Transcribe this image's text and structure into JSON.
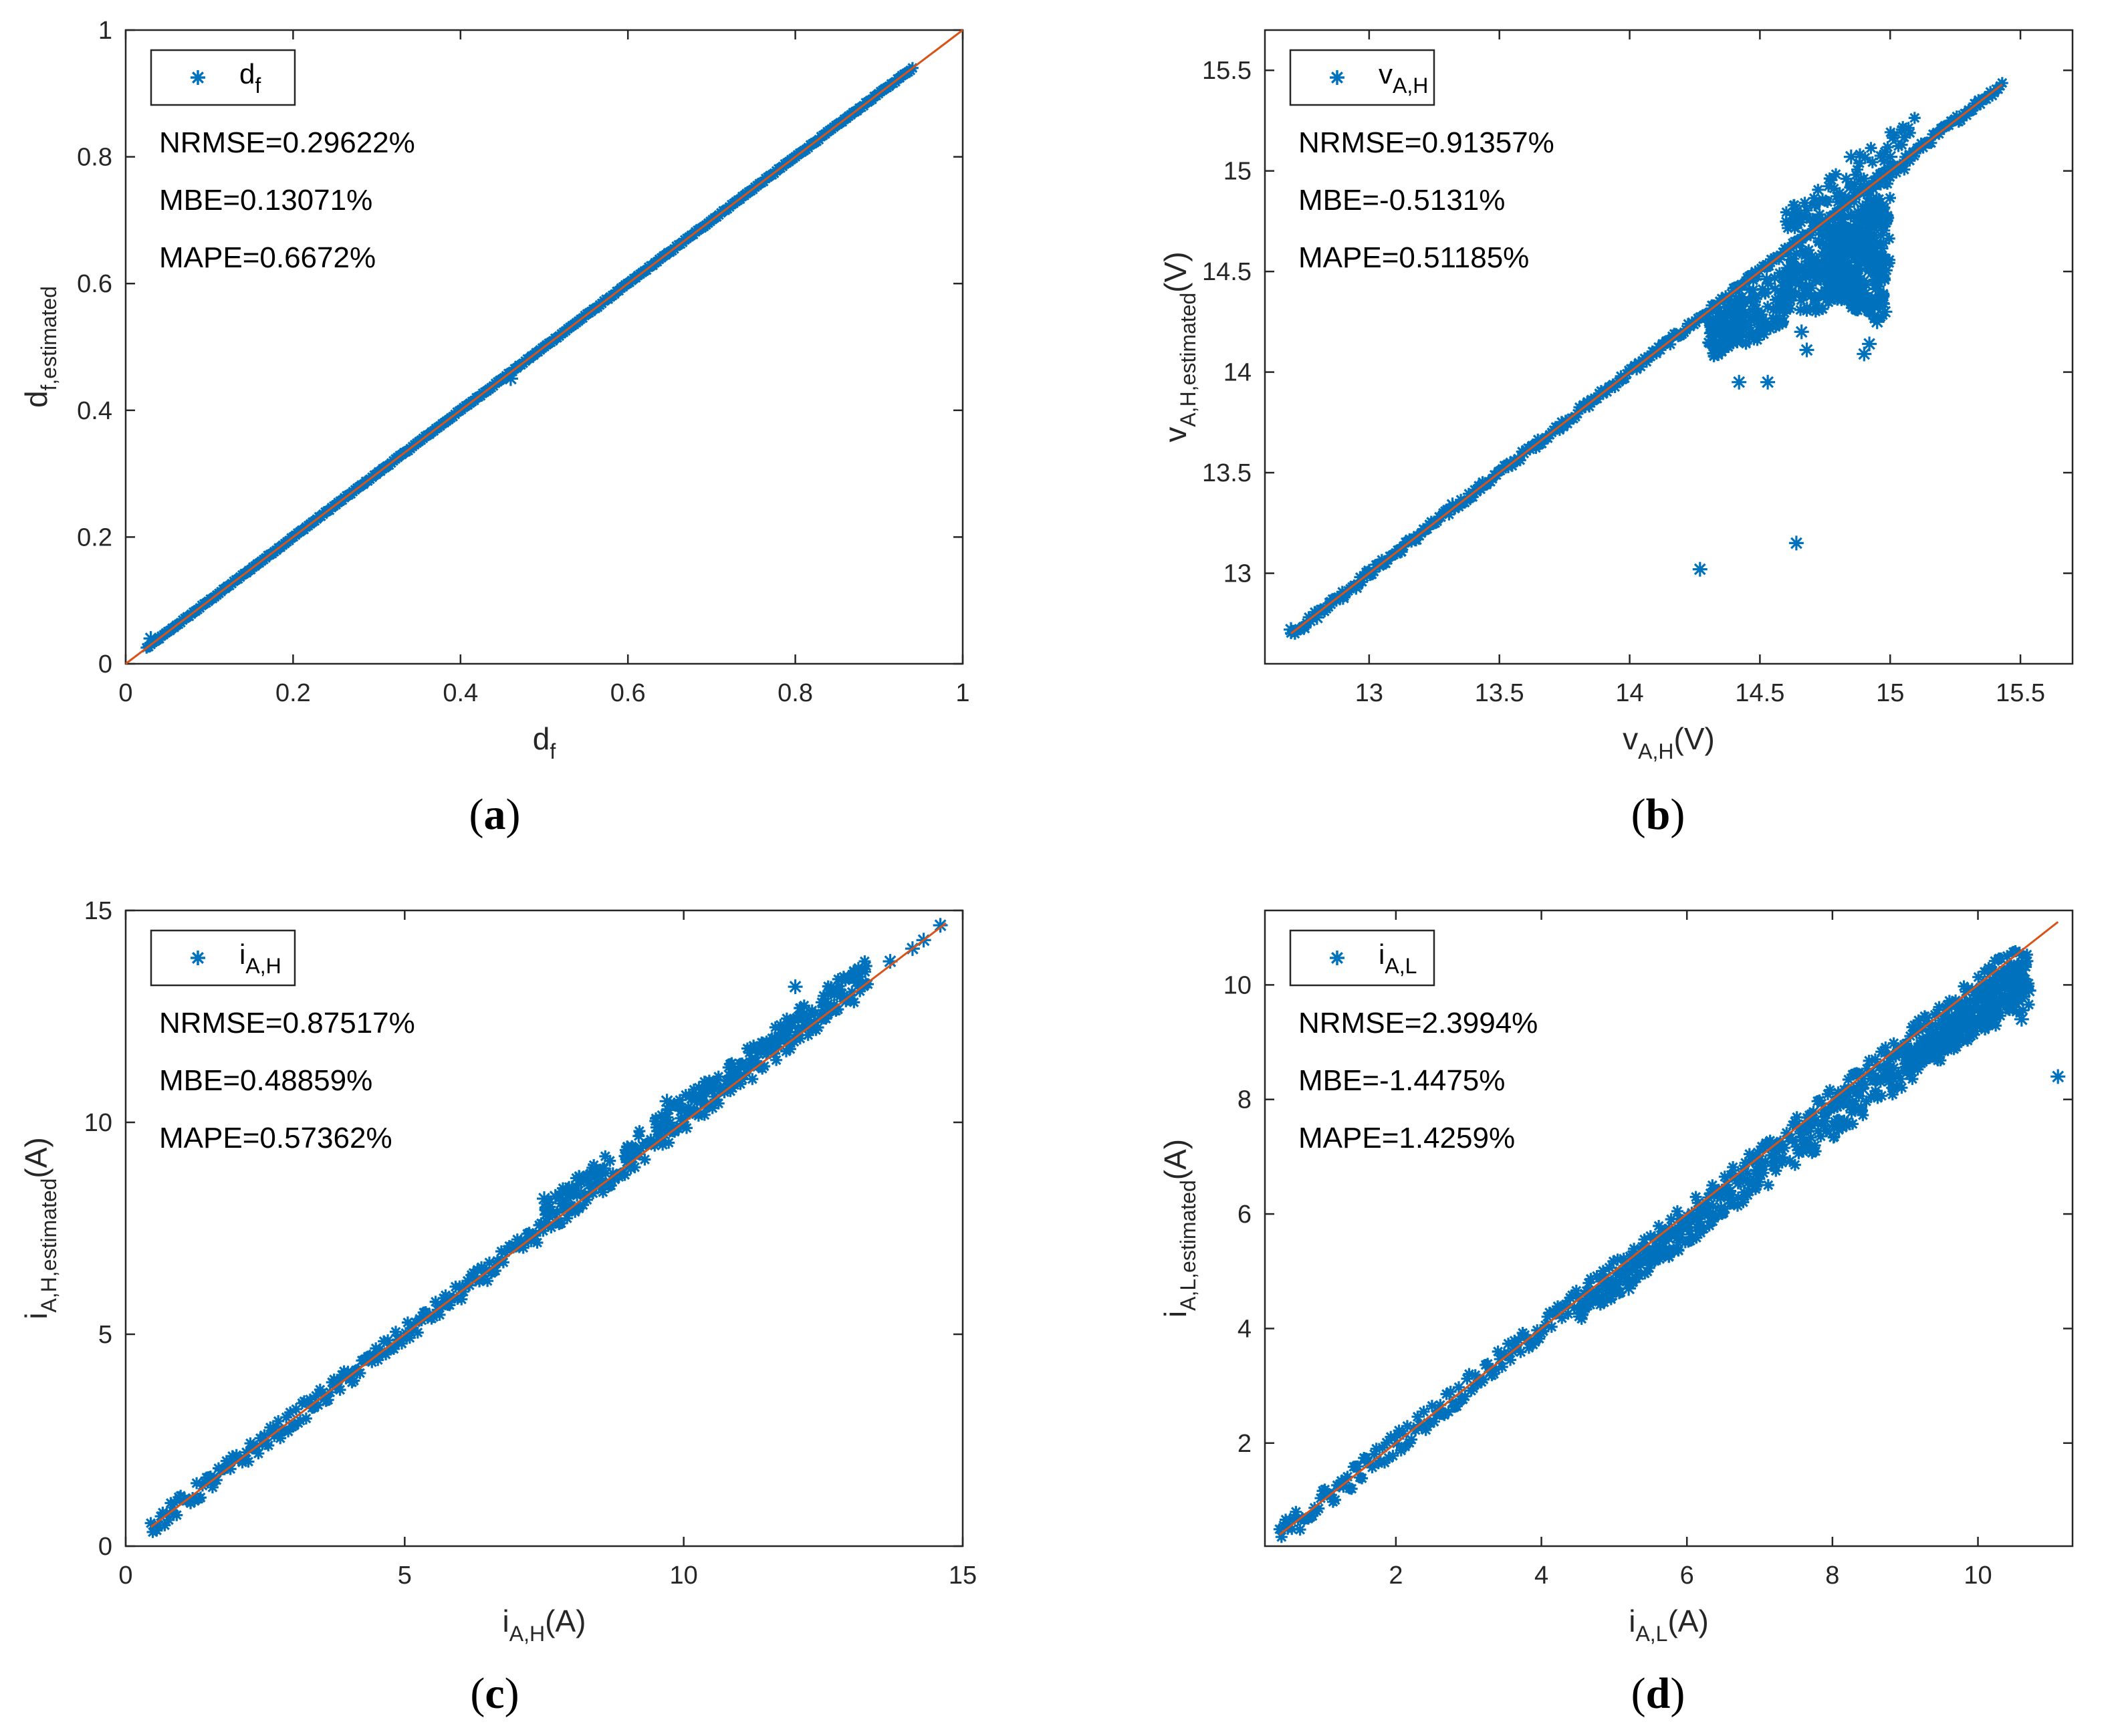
{
  "colors": {
    "marker": "#0072BD",
    "fit_line": "#D95319",
    "axes": "#262626"
  },
  "chart_data": [
    {
      "type": "scatter",
      "panel": "a",
      "caption": "a",
      "xlabel": {
        "main": "d",
        "sub": "f",
        "unit": ""
      },
      "ylabel": {
        "main": "d",
        "sub": "f,estimated",
        "unit": ""
      },
      "xlim": [
        0,
        1
      ],
      "ylim": [
        0,
        1
      ],
      "xticks": [
        0,
        0.2,
        0.4,
        0.6,
        0.8,
        1
      ],
      "yticks": [
        0,
        0.2,
        0.4,
        0.6,
        0.8,
        1
      ],
      "tick_labels_x": [
        "0",
        "0.2",
        "0.4",
        "0.6",
        "0.8",
        "1"
      ],
      "tick_labels_y": [
        "0",
        "0.2",
        "0.4",
        "0.6",
        "0.8",
        "1"
      ],
      "legend": {
        "main": "d",
        "sub": "f",
        "position": "top-left"
      },
      "stats": [
        "NRMSE=0.29622%",
        "MBE=0.13071%",
        "MAPE=0.6672%"
      ],
      "reference_line": {
        "from": [
          0,
          0
        ],
        "to": [
          1,
          1
        ]
      },
      "series_range": [
        0.025,
        0.94
      ],
      "spread": 0.004,
      "outliers": [
        [
          0.03,
          0.04
        ],
        [
          0.46,
          0.45
        ]
      ],
      "clusters": []
    },
    {
      "type": "scatter",
      "panel": "b",
      "caption": "b",
      "xlabel": {
        "main": "v",
        "sub": "A,H",
        "unit": "(V)"
      },
      "ylabel": {
        "main": "v",
        "sub": "A,H,estimated",
        "unit": "(V)"
      },
      "xlim": [
        12.6,
        15.7
      ],
      "ylim": [
        12.55,
        15.7
      ],
      "xticks": [
        13,
        13.5,
        14,
        14.5,
        15,
        15.5
      ],
      "yticks": [
        13,
        13.5,
        14,
        14.5,
        15,
        15.5
      ],
      "tick_labels_x": [
        "13",
        "13.5",
        "14",
        "14.5",
        "15",
        "15.5"
      ],
      "tick_labels_y": [
        "13",
        "13.5",
        "14",
        "14.5",
        "15",
        "15.5"
      ],
      "legend": {
        "main": "v",
        "sub": "A,H",
        "position": "top-left"
      },
      "stats": [
        "NRMSE=0.91357%",
        "MBE=-0.5131%",
        "MAPE=0.51185%"
      ],
      "reference_line": {
        "from": [
          12.7,
          12.7
        ],
        "to": [
          15.43,
          15.43
        ]
      },
      "series_range": [
        12.7,
        15.43
      ],
      "spread": 0.02,
      "outliers": [
        [
          12.7,
          12.72
        ],
        [
          12.75,
          12.73
        ],
        [
          12.8,
          12.78
        ],
        [
          12.85,
          12.85
        ],
        [
          12.9,
          12.88
        ],
        [
          12.95,
          12.93
        ],
        [
          13.0,
          13.01
        ],
        [
          13.12,
          13.11
        ],
        [
          13.18,
          13.17
        ],
        [
          13.32,
          13.34
        ],
        [
          14.27,
          13.02
        ],
        [
          14.42,
          13.95
        ],
        [
          14.53,
          13.95
        ],
        [
          14.64,
          13.15
        ],
        [
          14.66,
          14.2
        ],
        [
          14.68,
          14.11
        ],
        [
          14.9,
          14.09
        ],
        [
          14.92,
          14.14
        ],
        [
          14.95,
          14.25
        ],
        [
          14.98,
          14.3
        ],
        [
          15.0,
          15.07
        ],
        [
          14.85,
          15.07
        ]
      ],
      "clusters": [
        {
          "x": [
            14.3,
            15.0
          ],
          "below": [
            0.05,
            0.55
          ],
          "count": 420
        },
        {
          "x": [
            14.75,
            14.98
          ],
          "below": [
            0.1,
            0.75
          ],
          "count": 260
        },
        {
          "x": [
            14.6,
            15.1
          ],
          "below": [
            -0.2,
            0.08
          ],
          "count": 90
        }
      ]
    },
    {
      "type": "scatter",
      "panel": "c",
      "caption": "c",
      "xlabel": {
        "main": "i",
        "sub": "A,H",
        "unit": "(A)"
      },
      "ylabel": {
        "main": "i",
        "sub": "A,H,estimated",
        "unit": "(A)"
      },
      "xlim": [
        0,
        15
      ],
      "ylim": [
        0,
        15
      ],
      "xticks": [
        0,
        5,
        10,
        15
      ],
      "yticks": [
        0,
        5,
        10,
        15
      ],
      "tick_labels_x": [
        "0",
        "5",
        "10",
        "15"
      ],
      "tick_labels_y": [
        "0",
        "5",
        "10",
        "15"
      ],
      "legend": {
        "main": "i",
        "sub": "A,H",
        "position": "top-left"
      },
      "stats": [
        "NRMSE=0.87517%",
        "MBE=0.48859%",
        "MAPE=0.57362%"
      ],
      "reference_line": {
        "from": [
          0.45,
          0.45
        ],
        "to": [
          14.7,
          14.7
        ]
      },
      "series_range": [
        0.45,
        13.3
      ],
      "spread": 0.05,
      "outliers": [
        [
          7.5,
          8.2
        ],
        [
          7.7,
          8.25
        ],
        [
          8.0,
          8.45
        ],
        [
          8.3,
          8.6
        ],
        [
          8.6,
          8.8
        ],
        [
          9.0,
          9.3
        ],
        [
          9.7,
          10.5
        ],
        [
          10.2,
          10.6
        ],
        [
          12.0,
          13.2
        ],
        [
          13.7,
          13.8
        ],
        [
          14.1,
          14.1
        ],
        [
          14.3,
          14.3
        ],
        [
          14.6,
          14.65
        ]
      ],
      "clusters": [
        {
          "x": [
            7.5,
            13.3
          ],
          "above": [
            0.2,
            0.9
          ],
          "count": 180
        }
      ]
    },
    {
      "type": "scatter",
      "panel": "d",
      "caption": "d",
      "xlabel": {
        "main": "i",
        "sub": "A,L",
        "unit": "(A)"
      },
      "ylabel": {
        "main": "i",
        "sub": "A,L,estimated",
        "unit": "(A)"
      },
      "xlim": [
        0.2,
        11.3
      ],
      "ylim": [
        0.2,
        11.3
      ],
      "xticks": [
        2,
        4,
        6,
        8,
        10
      ],
      "yticks": [
        2,
        4,
        6,
        8,
        10
      ],
      "tick_labels_x": [
        "2",
        "4",
        "6",
        "8",
        "10"
      ],
      "tick_labels_y": [
        "2",
        "4",
        "6",
        "8",
        "10"
      ],
      "legend": {
        "main": "i",
        "sub": "A,L",
        "position": "top-left"
      },
      "stats": [
        "NRMSE=2.3994%",
        "MBE=-1.4475%",
        "MAPE=1.4259%"
      ],
      "reference_line": {
        "from": [
          0.4,
          0.4
        ],
        "to": [
          11.1,
          11.1
        ]
      },
      "series_range": [
        0.4,
        10.6
      ],
      "spread": 0.06,
      "outliers": [
        [
          11.1,
          8.4
        ],
        [
          10.6,
          9.4
        ],
        [
          10.7,
          9.9
        ],
        [
          5.2,
          4.7
        ]
      ],
      "clusters": [
        {
          "x": [
            4.5,
            10.7
          ],
          "below": [
            0.1,
            0.9
          ],
          "count": 380
        },
        {
          "x": [
            9.0,
            10.7
          ],
          "below": [
            0.2,
            1.1
          ],
          "count": 220
        }
      ]
    }
  ]
}
